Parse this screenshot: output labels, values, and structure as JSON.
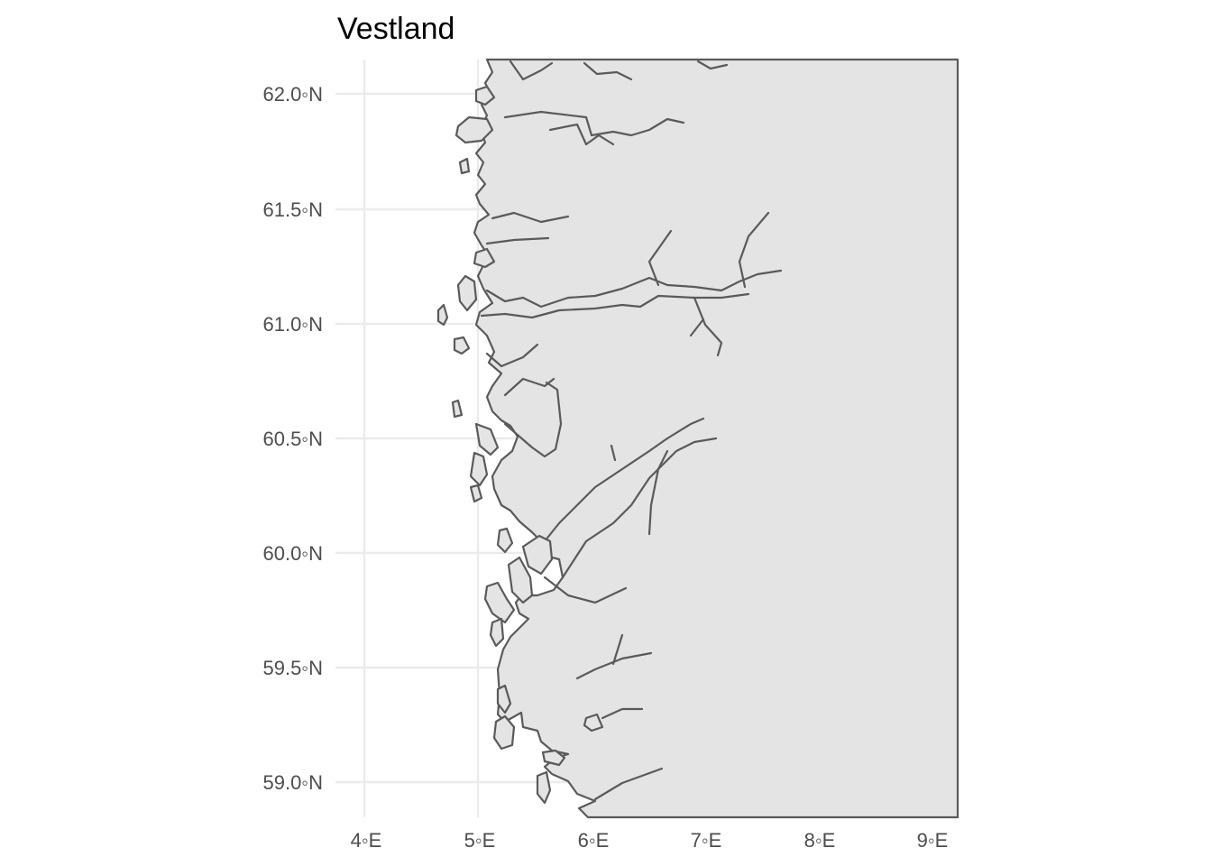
{
  "title": "Vestland",
  "colors": {
    "land": "#e4e4e4",
    "coastline": "#5a5a5a",
    "grid": "#ebebeb",
    "tick_text": "#4d4d4d",
    "background": "#ffffff"
  },
  "axes": {
    "lon_range": [
      3.85,
      9.25
    ],
    "lat_range": [
      58.83,
      62.15
    ],
    "x_ticks": [
      {
        "value": 4,
        "label": "4◦E"
      },
      {
        "value": 5,
        "label": "5◦E"
      },
      {
        "value": 6,
        "label": "6◦E"
      },
      {
        "value": 7,
        "label": "7◦E"
      },
      {
        "value": 8,
        "label": "8◦E"
      },
      {
        "value": 9,
        "label": "9◦E"
      }
    ],
    "y_ticks": [
      {
        "value": 62.0,
        "label": "62.0◦N"
      },
      {
        "value": 61.5,
        "label": "61.5◦N"
      },
      {
        "value": 61.0,
        "label": "61.0◦N"
      },
      {
        "value": 60.5,
        "label": "60.5◦N"
      },
      {
        "value": 60.0,
        "label": "60.0◦N"
      },
      {
        "value": 59.5,
        "label": "59.5◦N"
      },
      {
        "value": 59.0,
        "label": "59.0◦N"
      }
    ]
  }
}
